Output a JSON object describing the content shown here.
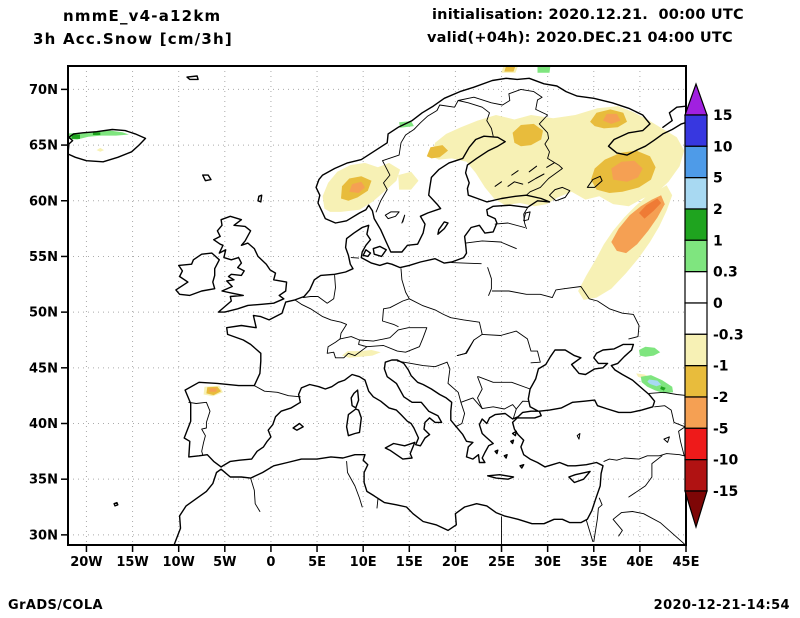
{
  "title": {
    "model": "nmmE_v4-a12km",
    "variable": "3h Acc.Snow [cm/3h]"
  },
  "run_info": {
    "initialisation": "initialisation: 2020.12.21.  00:00 UTC",
    "valid": "valid(+04h): 2020.DEC.21 04:00 UTC"
  },
  "footer": {
    "credit": "GrADS/COLA",
    "timestamp": "2020-12-21-14:54"
  },
  "axes": {
    "lat_labels": [
      "70N",
      "65N",
      "60N",
      "55N",
      "50N",
      "45N",
      "40N",
      "35N",
      "30N"
    ],
    "lat_values": [
      70,
      65,
      60,
      55,
      50,
      45,
      40,
      35,
      30
    ],
    "lon_labels": [
      "20W",
      "15W",
      "10W",
      "5W",
      "0",
      "5E",
      "10E",
      "15E",
      "20E",
      "25E",
      "30E",
      "35E",
      "40E",
      "45E"
    ],
    "lon_values": [
      -20,
      -15,
      -10,
      -5,
      0,
      5,
      10,
      15,
      20,
      25,
      30,
      35,
      40,
      45
    ]
  },
  "colorbar": {
    "tick_labels": [
      "15",
      "10",
      "5",
      "2",
      "1",
      "0.3",
      "0",
      "-0.3",
      "-1",
      "-2",
      "-5",
      "-10",
      "-15"
    ],
    "colors_top_to_bottom": [
      "#A020E0",
      "#3737E0",
      "#4E9BE8",
      "#A8D9F2",
      "#1FA41F",
      "#7FE57F",
      "#FFFFFF",
      "#FFFFFF",
      "#F7F1B5",
      "#E8BC3C",
      "#F5A053",
      "#EE1A1A",
      "#B01212",
      "#7E0606"
    ]
  },
  "palette": {
    "pale_yellow": "#F7F1B5",
    "goldenrod": "#E8BC3C",
    "orange": "#F5A053",
    "deep_orange": "#EF7B35",
    "red": "#EE1A1A",
    "dark_red": "#B01212",
    "maroon": "#7E0606",
    "light_green": "#7FE57F",
    "dark_green": "#1FA41F",
    "light_blue": "#A8D9F2",
    "mid_blue": "#4E9BE8",
    "deep_blue": "#3737E0",
    "purple": "#A020E0",
    "grid_gray": "#ABABAB"
  },
  "chart_data": {
    "type": "filled-contour-map",
    "title": "3h Acc.Snow [cm/3h]",
    "model": "nmmE_v4-a12km",
    "initialisation": "2020.12.21 00:00 UTC",
    "valid": "2020.DEC.21 04:00 UTC (+04h)",
    "units": "cm/3h",
    "lon_range": [
      -22,
      45
    ],
    "lat_range": [
      29,
      72
    ],
    "grid": "dotted, every 5 degrees",
    "contour_levels": [
      -15,
      -10,
      -5,
      -2,
      -1,
      -0.3,
      0,
      0.3,
      1,
      2,
      5,
      10,
      15
    ],
    "legend_position": "right vertical colorbar with over/under arrows",
    "shaded_regions": [
      {
        "area": "Iceland north coast",
        "band": "0.3 to 2",
        "peak": 2
      },
      {
        "area": "Southern Norway mountains (~9E,61N)",
        "band": "-0.3 to -5",
        "peak": -5
      },
      {
        "area": "Central Sweden (~15E,62N)",
        "band": "-0.3 to -1",
        "peak": -1
      },
      {
        "area": "Swedish coast (~18E,64.5N)",
        "band": "-1 to -2",
        "peak": -2
      },
      {
        "area": "Finland / NW Russia broad area",
        "band": "-0.3 to -1",
        "peak": -1
      },
      {
        "area": "Northern Finland (~28E,66N)",
        "band": "-1 to -2",
        "peak": -2
      },
      {
        "area": "Kola / White Sea (~37E,67.5N)",
        "band": "-1 to -5",
        "peak": -5
      },
      {
        "area": "Arkhangelsk region (~38-41E,62-64N)",
        "band": "-1 to -5",
        "peak": -5
      },
      {
        "area": "Band toward upper Volga (~34-43E,51-60N)",
        "band": "-0.3 to -5",
        "peak": -5
      },
      {
        "area": "NW Spain (~6W,43N)",
        "band": "-1 to -5",
        "peak": -5
      },
      {
        "area": "Alps (~8-12E,46.3N)",
        "band": "-0.3 to -1",
        "peak": -1
      },
      {
        "area": "Norway coast (~14.5E,66.8N)",
        "band": "0.3 to 1",
        "peak": 1
      },
      {
        "area": "Barents coast spot (~29.5E,71.7N)",
        "band": "0.3 to 1",
        "peak": 1
      },
      {
        "area": "Caucasus Black Sea coast (~41.5E,43.5N)",
        "band": "0.3 to 5",
        "peak": 5
      },
      {
        "area": "North of Caucasus (~41E,46.5N)",
        "band": "0.3 to 1",
        "peak": 1
      }
    ]
  }
}
